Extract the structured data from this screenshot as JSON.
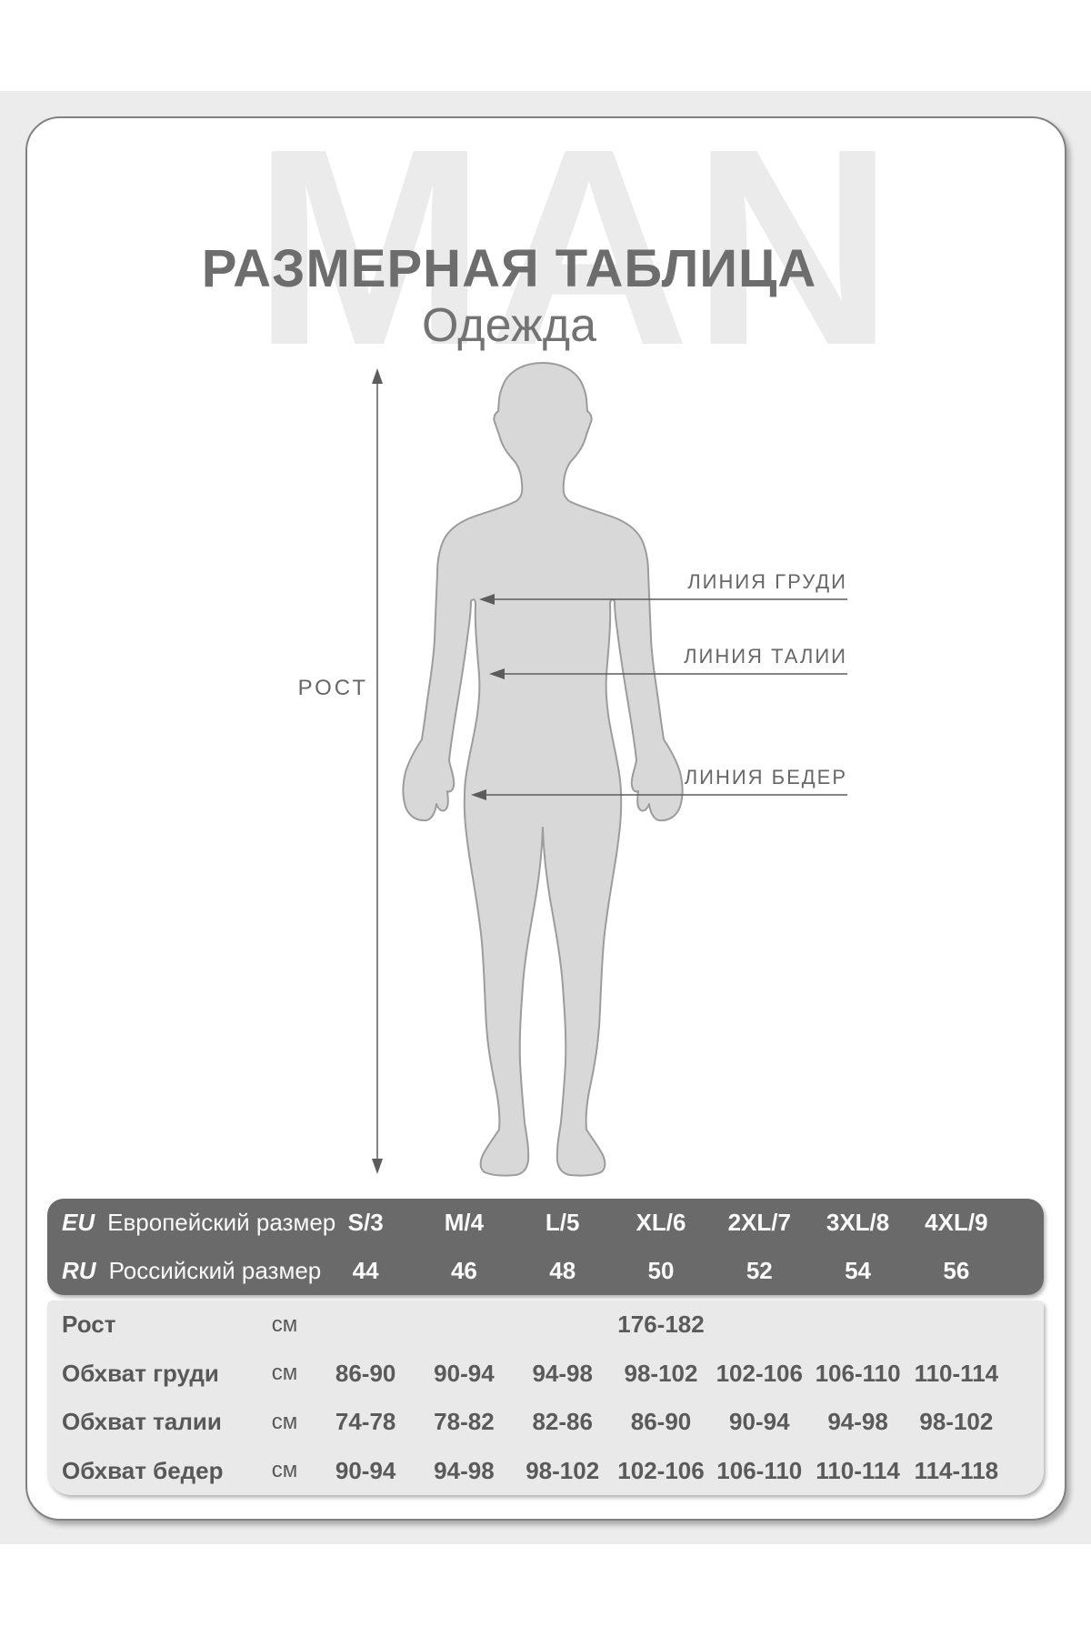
{
  "page": {
    "watermark": "MAN",
    "title": "РАЗМЕРНАЯ ТАБЛИЦА",
    "subtitle": "Одежда"
  },
  "diagram": {
    "height_label": "РОСТ",
    "chest_line_label": "ЛИНИЯ ГРУДИ",
    "waist_line_label": "ЛИНИЯ ТАЛИИ",
    "hip_line_label": "ЛИНИЯ БЕДЕР"
  },
  "table": {
    "header": {
      "eu": {
        "code": "EU",
        "label": "Европейский размер",
        "values": [
          "S/3",
          "M/4",
          "L/5",
          "XL/6",
          "2XL/7",
          "3XL/8",
          "4XL/9"
        ]
      },
      "ru": {
        "code": "RU",
        "label": "Российский размер",
        "values": [
          "44",
          "46",
          "48",
          "50",
          "52",
          "54",
          "56"
        ]
      }
    },
    "rows": [
      {
        "label": "Рост",
        "unit": "см",
        "span_value": "176-182"
      },
      {
        "label": "Обхват груди",
        "unit": "см",
        "values": [
          "86-90",
          "90-94",
          "94-98",
          "98-102",
          "102-106",
          "106-110",
          "110-114"
        ]
      },
      {
        "label": "Обхват талии",
        "unit": "см",
        "values": [
          "74-78",
          "78-82",
          "82-86",
          "86-90",
          "90-94",
          "94-98",
          "98-102"
        ]
      },
      {
        "label": "Обхват бедер",
        "unit": "см",
        "values": [
          "90-94",
          "94-98",
          "98-102",
          "102-106",
          "106-110",
          "110-114",
          "114-118"
        ]
      }
    ],
    "colors": {
      "header_bg": "#6a6a6a",
      "body_bg": "#e9e9e9",
      "silhouette_fill": "#d8d8d8",
      "accent_text": "#6d6d6d"
    }
  }
}
